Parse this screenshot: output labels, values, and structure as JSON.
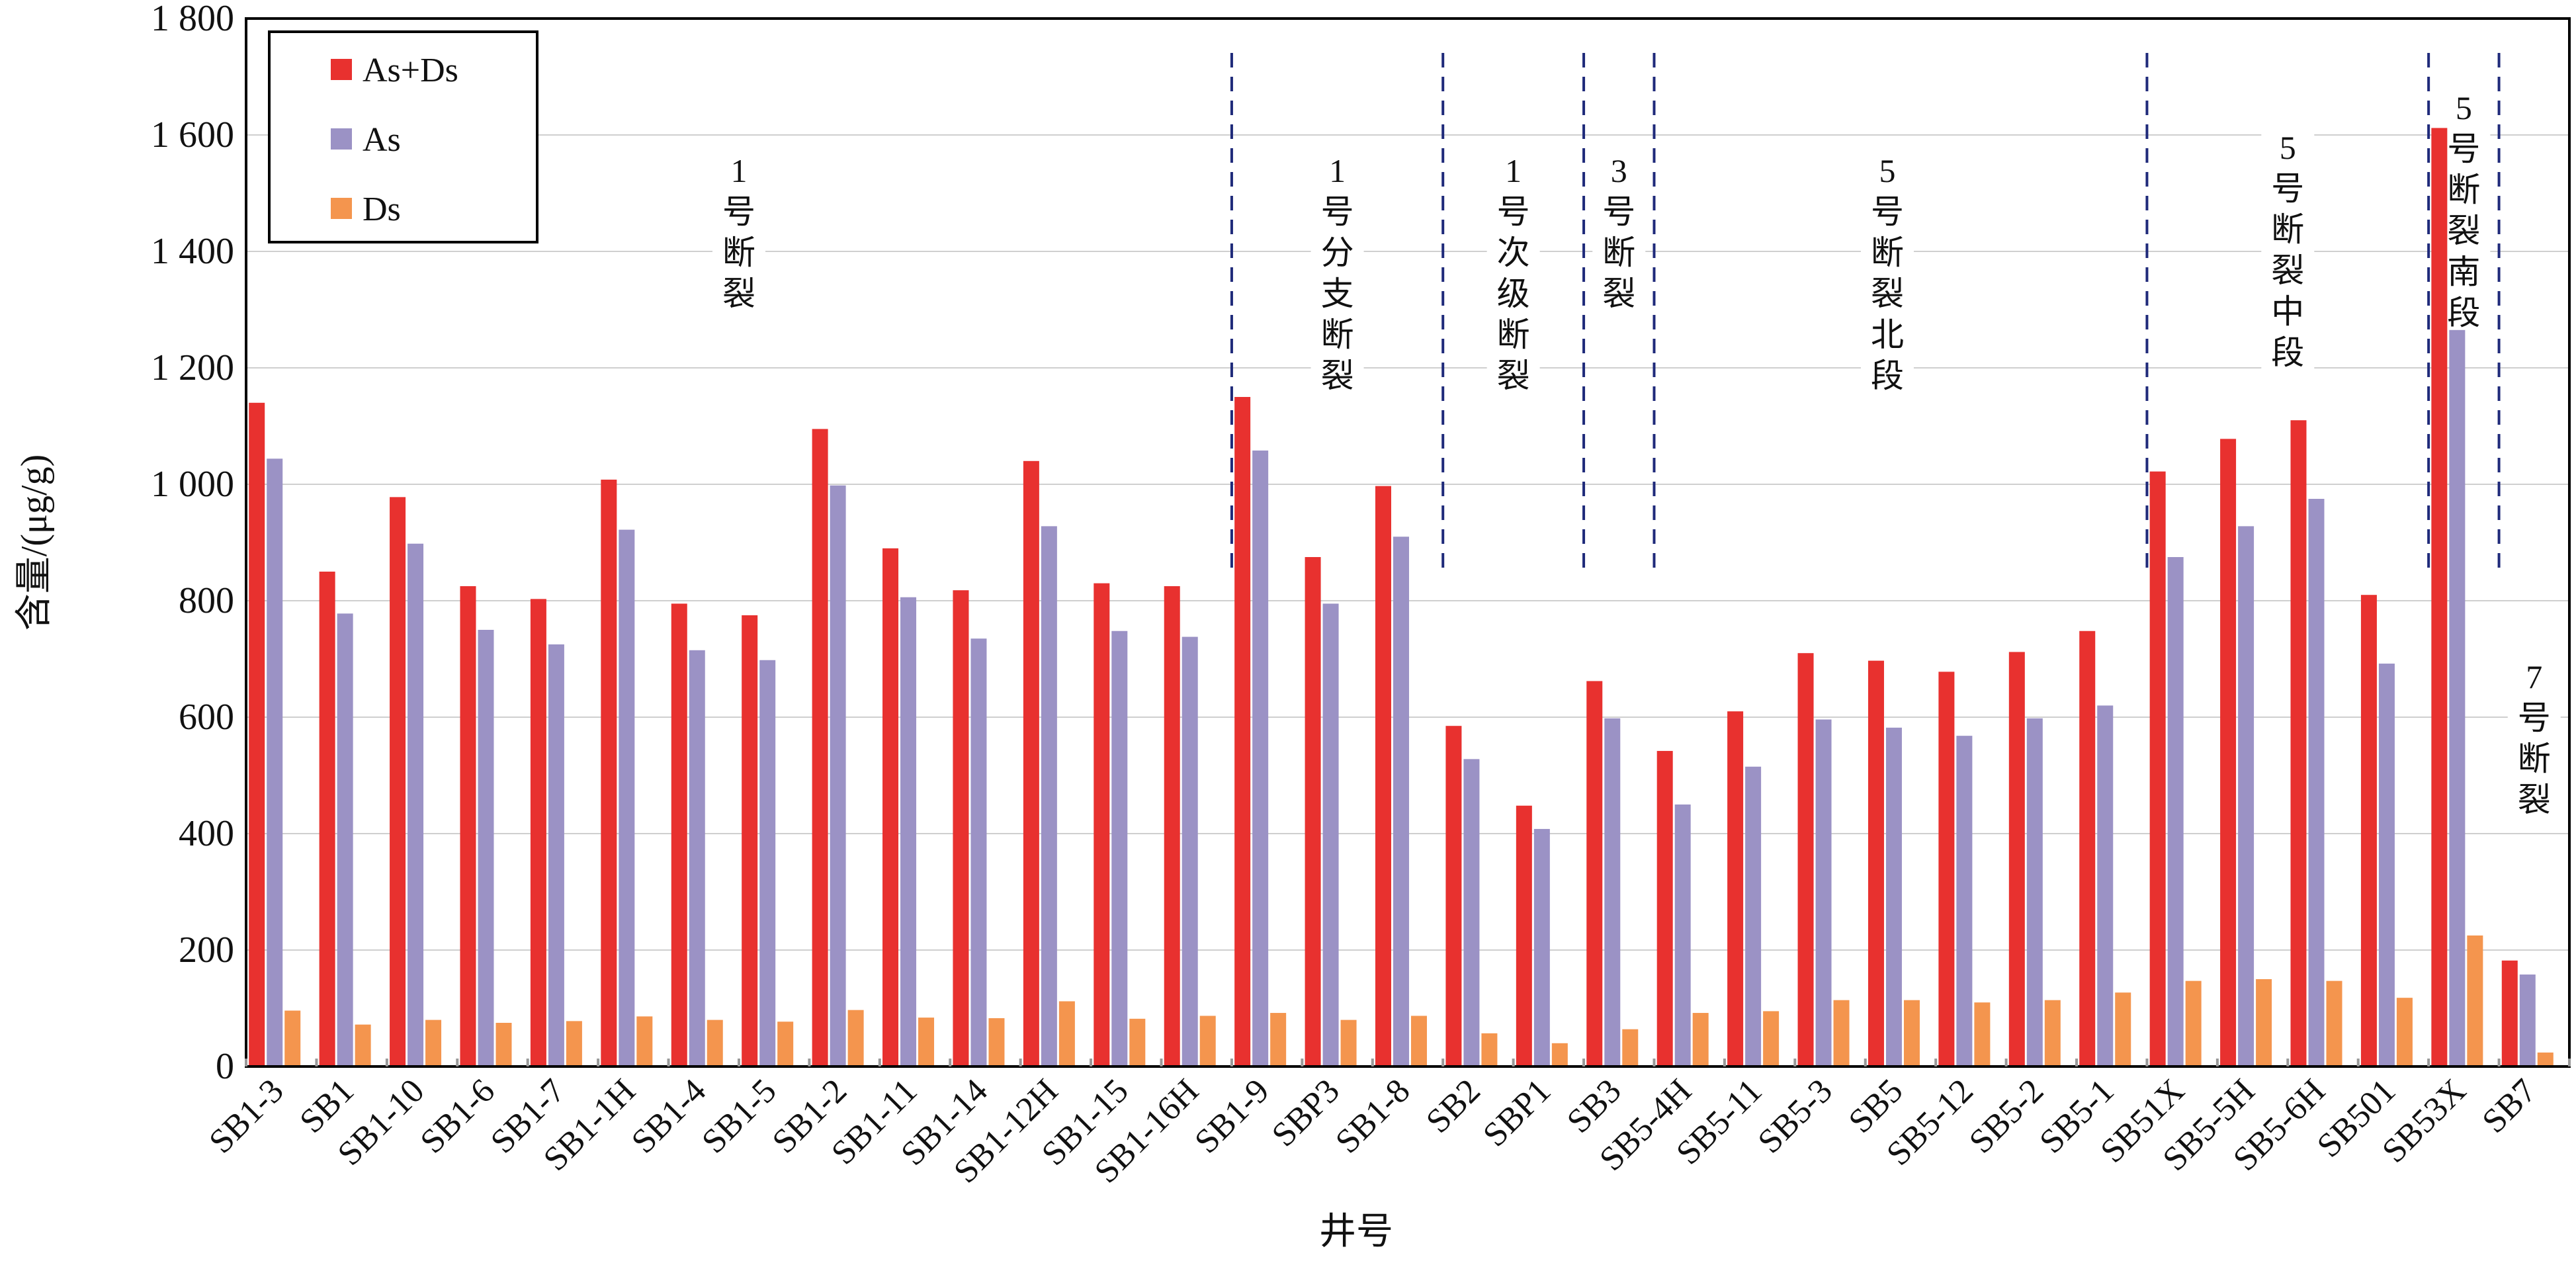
{
  "chart_data": {
    "type": "bar",
    "title": "",
    "xlabel": "井号",
    "ylabel": "含量/(μg/g)",
    "ylim": [
      0,
      1800
    ],
    "yticks": [
      0,
      200,
      400,
      600,
      800,
      1000,
      1200,
      1400,
      1600,
      1800
    ],
    "ytick_labels": [
      "0",
      "200",
      "400",
      "600",
      "800",
      "1 000",
      "1 200",
      "1 400",
      "1 600",
      "1 800"
    ],
    "grid": true,
    "legend_position": "top-left",
    "categories": [
      "SB1-3",
      "SB1",
      "SB1-10",
      "SB1-6",
      "SB1-7",
      "SB1-1H",
      "SB1-4",
      "SB1-5",
      "SB1-2",
      "SB1-11",
      "SB1-14",
      "SB1-12H",
      "SB1-15",
      "SB1-16H",
      "SB1-9",
      "SBP3",
      "SB1-8",
      "SB2",
      "SBP1",
      "SB3",
      "SB5-4H",
      "SB5-11",
      "SB5-3",
      "SB5",
      "SB5-12",
      "SB5-2",
      "SB5-1",
      "SB51X",
      "SB5-5H",
      "SB5-6H",
      "SB501",
      "SB53X",
      "SB7"
    ],
    "series": [
      {
        "name": "As+Ds",
        "color": "#e8312f",
        "values": [
          1140,
          850,
          978,
          825,
          803,
          1008,
          795,
          775,
          1095,
          890,
          818,
          1040,
          830,
          825,
          1150,
          875,
          997,
          585,
          448,
          662,
          542,
          610,
          710,
          697,
          678,
          712,
          748,
          1022,
          1078,
          1110,
          810,
          1612,
          182
        ]
      },
      {
        "name": "As",
        "color": "#9b92c5",
        "values": [
          1044,
          778,
          898,
          750,
          725,
          922,
          715,
          698,
          998,
          806,
          735,
          928,
          748,
          738,
          1058,
          795,
          910,
          528,
          408,
          598,
          450,
          515,
          596,
          582,
          568,
          598,
          620,
          875,
          928,
          975,
          692,
          1265,
          158
        ]
      },
      {
        "name": "Ds",
        "color": "#f4954e",
        "values": [
          96,
          72,
          80,
          75,
          78,
          86,
          80,
          77,
          97,
          84,
          83,
          112,
          82,
          87,
          92,
          80,
          87,
          57,
          40,
          64,
          92,
          95,
          114,
          114,
          110,
          114,
          127,
          147,
          150,
          147,
          118,
          225,
          24
        ]
      }
    ],
    "divider_after_index": [
      13,
      16,
      18,
      19,
      26,
      30,
      31
    ],
    "regions": [
      {
        "label": "1号断裂",
        "start": 0,
        "end": 13
      },
      {
        "label": "1号分支断裂",
        "start": 14,
        "end": 16
      },
      {
        "label": "1号次级断裂",
        "start": 17,
        "end": 18
      },
      {
        "label": "3号断裂",
        "start": 19,
        "end": 19
      },
      {
        "label": "5号断裂北段",
        "start": 20,
        "end": 26
      },
      {
        "label": "5号断裂中段",
        "start": 27,
        "end": 30
      },
      {
        "label": "5号断裂南段",
        "start": 31,
        "end": 31
      },
      {
        "label": "7号断裂",
        "start": 32,
        "end": 32
      }
    ]
  }
}
